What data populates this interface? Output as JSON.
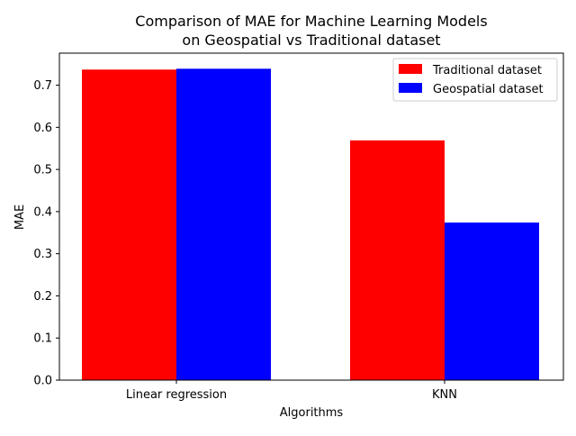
{
  "chart_data": {
    "type": "bar",
    "title": "Comparison of MAE for Machine Learning Models",
    "subtitle": "on Geospatial vs Traditional dataset",
    "xlabel": "Algorithms",
    "ylabel": "MAE",
    "categories": [
      "Linear regression",
      "KNN"
    ],
    "series": [
      {
        "name": "Traditional dataset",
        "color": "#ff0000",
        "values": [
          0.737,
          0.569
        ]
      },
      {
        "name": "Geospatial dataset",
        "color": "#0000ff",
        "values": [
          0.739,
          0.374
        ]
      }
    ],
    "ylim": [
      0,
      0.776
    ],
    "yticks": [
      "0.0",
      "0.1",
      "0.2",
      "0.3",
      "0.4",
      "0.5",
      "0.6",
      "0.7"
    ],
    "grid": false,
    "legend": "top-right"
  }
}
